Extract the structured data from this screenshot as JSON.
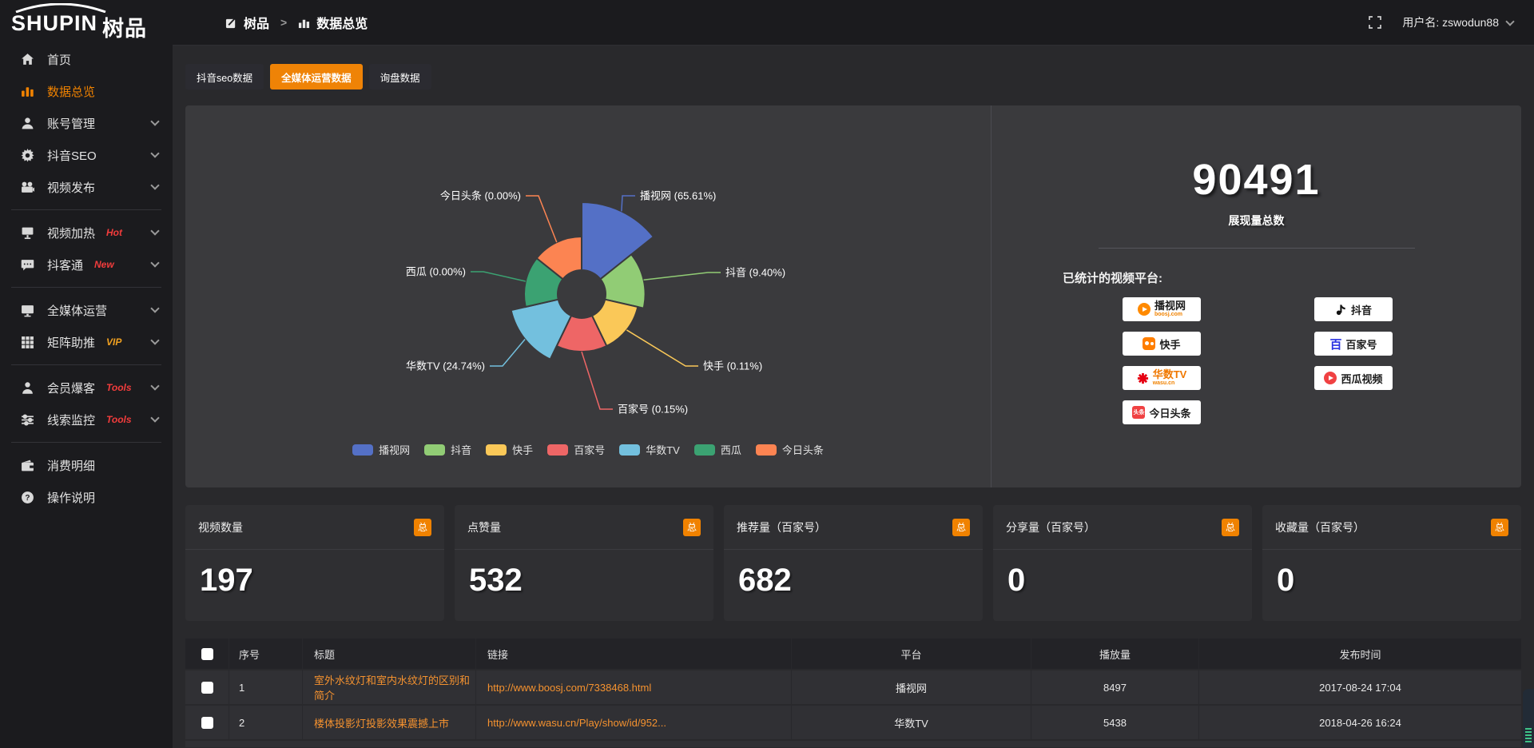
{
  "logo": {
    "en": "SHUPIN",
    "cn": "树品"
  },
  "topbar": {
    "breadcrumb": [
      {
        "label": "树品"
      },
      {
        "label": "数据总览"
      }
    ],
    "separator": ">",
    "username": "用户名: zswodun88"
  },
  "sidebar": {
    "items": [
      {
        "label": "首页",
        "badge": ""
      },
      {
        "label": "数据总览",
        "badge": ""
      },
      {
        "label": "账号管理",
        "badge": ""
      },
      {
        "label": "抖音SEO",
        "badge": ""
      },
      {
        "label": "视频发布",
        "badge": ""
      },
      {
        "label": "视频加热",
        "badge": "Hot"
      },
      {
        "label": "抖客通",
        "badge": "New"
      },
      {
        "label": "全媒体运营",
        "badge": ""
      },
      {
        "label": "矩阵助推",
        "badge": "VIP"
      },
      {
        "label": "会员爆客",
        "badge": "Tools"
      },
      {
        "label": "线索监控",
        "badge": "Tools"
      },
      {
        "label": "消费明细",
        "badge": ""
      },
      {
        "label": "操作说明",
        "badge": ""
      }
    ]
  },
  "tabs": [
    {
      "label": "抖音seo数据"
    },
    {
      "label": "全媒体运营数据"
    },
    {
      "label": "询盘数据"
    }
  ],
  "chart_data": {
    "type": "pie",
    "mode": "rose",
    "legend_position": "bottom",
    "inner_radius": 30,
    "min_radius": 72,
    "max_radius": 115,
    "start_angle": -90,
    "series": [
      {
        "name": "播视网",
        "percent": 65.61,
        "color": "#5470c6",
        "label": "播视网 (65.61%)"
      },
      {
        "name": "抖音",
        "percent": 9.4,
        "color": "#91cc75",
        "label": "抖音 (9.40%)"
      },
      {
        "name": "快手",
        "percent": 0.11,
        "color": "#fac858",
        "label": "快手 (0.11%)"
      },
      {
        "name": "百家号",
        "percent": 0.15,
        "color": "#ee6666",
        "label": "百家号 (0.15%)"
      },
      {
        "name": "华数TV",
        "percent": 24.74,
        "color": "#73c0de",
        "label": "华数TV (24.74%)"
      },
      {
        "name": "西瓜",
        "percent": 0.0,
        "color": "#3ba272",
        "label": "西瓜 (0.00%)"
      },
      {
        "name": "今日头条",
        "percent": 0.0,
        "color": "#fc8452",
        "label": "今日头条 (0.00%)"
      }
    ]
  },
  "summary": {
    "total_value": "90491",
    "total_label": "展现量总数",
    "platforms_label": "已统计的视频平台:",
    "platforms": [
      {
        "name": "播视网",
        "sub": "boosj.com"
      },
      {
        "name": "快手",
        "sub": ""
      },
      {
        "name": "华数TV",
        "sub": "wasu.cn"
      },
      {
        "name": "今日头条",
        "sub": "",
        "icon_text": "头条"
      },
      {
        "name": "抖音",
        "sub": ""
      },
      {
        "name": "百家号",
        "sub": "",
        "icon_text": "百"
      },
      {
        "name": "西瓜视频",
        "sub": ""
      }
    ]
  },
  "stat_cards": [
    {
      "title": "视频数量",
      "badge": "总",
      "value": "197"
    },
    {
      "title": "点赞量",
      "badge": "总",
      "value": "532"
    },
    {
      "title": "推荐量（百家号）",
      "badge": "总",
      "value": "682"
    },
    {
      "title": "分享量（百家号）",
      "badge": "总",
      "value": "0"
    },
    {
      "title": "收藏量（百家号）",
      "badge": "总",
      "value": "0"
    }
  ],
  "table": {
    "headers": {
      "seq": "序号",
      "title": "标题",
      "link": "链接",
      "platform": "平台",
      "plays": "播放量",
      "time": "发布时间"
    },
    "rows": [
      {
        "seq": "1",
        "title": "室外水纹灯和室内水纹灯的区别和简介",
        "link": "http://www.boosj.com/7338468.html",
        "platform": "播视网",
        "plays": "8497",
        "time": "2017-08-24 17:04"
      },
      {
        "seq": "2",
        "title": "楼体投影灯投影效果震撼上市",
        "link": "http://www.wasu.cn/Play/show/id/952...",
        "platform": "华数TV",
        "plays": "5438",
        "time": "2018-04-26 16:24"
      }
    ]
  },
  "colors": {
    "accent": "#f08200",
    "panel": "#3a3a3d",
    "hot_badge": "#f23c3c",
    "vip_badge": "#f0a020",
    "link": "#f5922f"
  }
}
